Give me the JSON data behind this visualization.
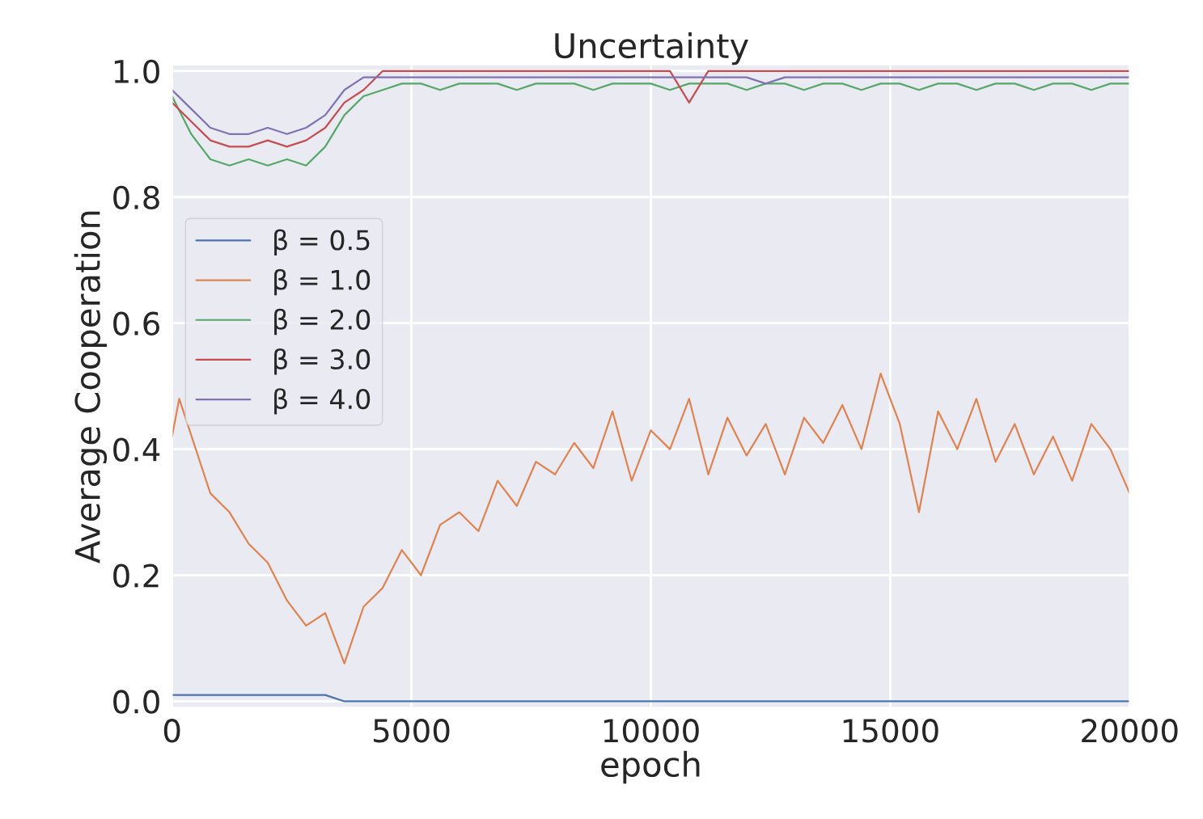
{
  "chart_data": {
    "type": "line",
    "title": "Uncertainty",
    "xlabel": "epoch",
    "ylabel": "Average Cooperation",
    "x": [
      0,
      400,
      800,
      1200,
      1600,
      2000,
      2400,
      2800,
      3200,
      3600,
      4000,
      4400,
      4800,
      5200,
      5600,
      6000,
      6400,
      6800,
      7200,
      7600,
      8000,
      8400,
      8800,
      9200,
      9600,
      10000,
      10400,
      10800,
      11200,
      11600,
      12000,
      12400,
      12800,
      13200,
      13600,
      14000,
      14400,
      14800,
      15200,
      15600,
      16000,
      16400,
      16800,
      17200,
      17600,
      18000,
      18400,
      18800,
      19200,
      19600,
      20000
    ],
    "series": [
      {
        "name": "β = 0.5",
        "color": "#4c72b0",
        "values": [
          0.01,
          0.01,
          0.01,
          0.01,
          0.01,
          0.01,
          0.01,
          0.01,
          0.01,
          0.0,
          0.0,
          0.0,
          0.0,
          0.0,
          0.0,
          0.0,
          0.0,
          0.0,
          0.0,
          0.0,
          0.0,
          0.0,
          0.0,
          0.0,
          0.0,
          0.0,
          0.0,
          0.0,
          0.0,
          0.0,
          0.0,
          0.0,
          0.0,
          0.0,
          0.0,
          0.0,
          0.0,
          0.0,
          0.0,
          0.0,
          0.0,
          0.0,
          0.0,
          0.0,
          0.0,
          0.0,
          0.0,
          0.0,
          0.0,
          0.0,
          0.0
        ]
      },
      {
        "name": "β = 1.0",
        "color": "#dd8452",
        "x": [
          0,
          150,
          800,
          1200,
          1600,
          2000,
          2400,
          2800,
          3200,
          3600,
          4000,
          4400,
          4800,
          5200,
          5600,
          6000,
          6400,
          6800,
          7200,
          7600,
          8000,
          8400,
          8800,
          9200,
          9600,
          10000,
          10400,
          10800,
          11200,
          11600,
          12000,
          12400,
          12800,
          13200,
          13600,
          14000,
          14400,
          14800,
          15200,
          15600,
          16000,
          16400,
          16800,
          17200,
          17600,
          18000,
          18400,
          18800,
          19200,
          19600,
          20000
        ],
        "values": [
          0.42,
          0.48,
          0.33,
          0.3,
          0.25,
          0.22,
          0.16,
          0.12,
          0.14,
          0.06,
          0.15,
          0.18,
          0.24,
          0.2,
          0.28,
          0.3,
          0.27,
          0.35,
          0.31,
          0.38,
          0.36,
          0.41,
          0.37,
          0.46,
          0.35,
          0.43,
          0.4,
          0.48,
          0.36,
          0.45,
          0.39,
          0.44,
          0.36,
          0.45,
          0.41,
          0.47,
          0.4,
          0.52,
          0.44,
          0.3,
          0.46,
          0.4,
          0.48,
          0.38,
          0.44,
          0.36,
          0.42,
          0.35,
          0.44,
          0.4,
          0.33
        ]
      },
      {
        "name": "β = 2.0",
        "color": "#55a868",
        "values": [
          0.96,
          0.9,
          0.86,
          0.85,
          0.86,
          0.85,
          0.86,
          0.85,
          0.88,
          0.93,
          0.96,
          0.97,
          0.98,
          0.98,
          0.97,
          0.98,
          0.98,
          0.98,
          0.97,
          0.98,
          0.98,
          0.98,
          0.97,
          0.98,
          0.98,
          0.98,
          0.97,
          0.98,
          0.98,
          0.98,
          0.97,
          0.98,
          0.98,
          0.97,
          0.98,
          0.98,
          0.97,
          0.98,
          0.98,
          0.97,
          0.98,
          0.98,
          0.97,
          0.98,
          0.98,
          0.97,
          0.98,
          0.98,
          0.97,
          0.98,
          0.98
        ]
      },
      {
        "name": "β = 3.0",
        "color": "#c44e52",
        "values": [
          0.95,
          0.92,
          0.89,
          0.88,
          0.88,
          0.89,
          0.88,
          0.89,
          0.91,
          0.95,
          0.97,
          1.0,
          1.0,
          1.0,
          1.0,
          1.0,
          1.0,
          1.0,
          1.0,
          1.0,
          1.0,
          1.0,
          1.0,
          1.0,
          1.0,
          1.0,
          1.0,
          0.95,
          1.0,
          1.0,
          1.0,
          1.0,
          1.0,
          1.0,
          1.0,
          1.0,
          1.0,
          1.0,
          1.0,
          1.0,
          1.0,
          1.0,
          1.0,
          1.0,
          1.0,
          1.0,
          1.0,
          1.0,
          1.0,
          1.0,
          1.0
        ]
      },
      {
        "name": "β = 4.0",
        "color": "#8172b3",
        "values": [
          0.97,
          0.94,
          0.91,
          0.9,
          0.9,
          0.91,
          0.9,
          0.91,
          0.93,
          0.97,
          0.99,
          0.99,
          0.99,
          0.99,
          0.99,
          0.99,
          0.99,
          0.99,
          0.99,
          0.99,
          0.99,
          0.99,
          0.99,
          0.99,
          0.99,
          0.99,
          0.99,
          0.99,
          0.99,
          0.99,
          0.99,
          0.98,
          0.99,
          0.99,
          0.99,
          0.99,
          0.99,
          0.99,
          0.99,
          0.99,
          0.99,
          0.99,
          0.99,
          0.99,
          0.99,
          0.99,
          0.99,
          0.99,
          0.99,
          0.99,
          0.99
        ]
      }
    ],
    "xlim": [
      0,
      20000
    ],
    "ylim": [
      -0.01,
      1.01
    ],
    "xticks": [
      0,
      5000,
      10000,
      15000,
      20000
    ],
    "yticks": [
      {
        "value": 0,
        "label": "0.0"
      },
      {
        "value": 0.2,
        "label": "0.2"
      },
      {
        "value": 0.4,
        "label": "0.4"
      },
      {
        "value": 0.6,
        "label": "0.6"
      },
      {
        "value": 0.8,
        "label": "0.8"
      },
      {
        "value": 1.0,
        "label": "1.0"
      }
    ],
    "grid": true,
    "legend": "center left",
    "marker": "none",
    "line_style": "solid"
  }
}
